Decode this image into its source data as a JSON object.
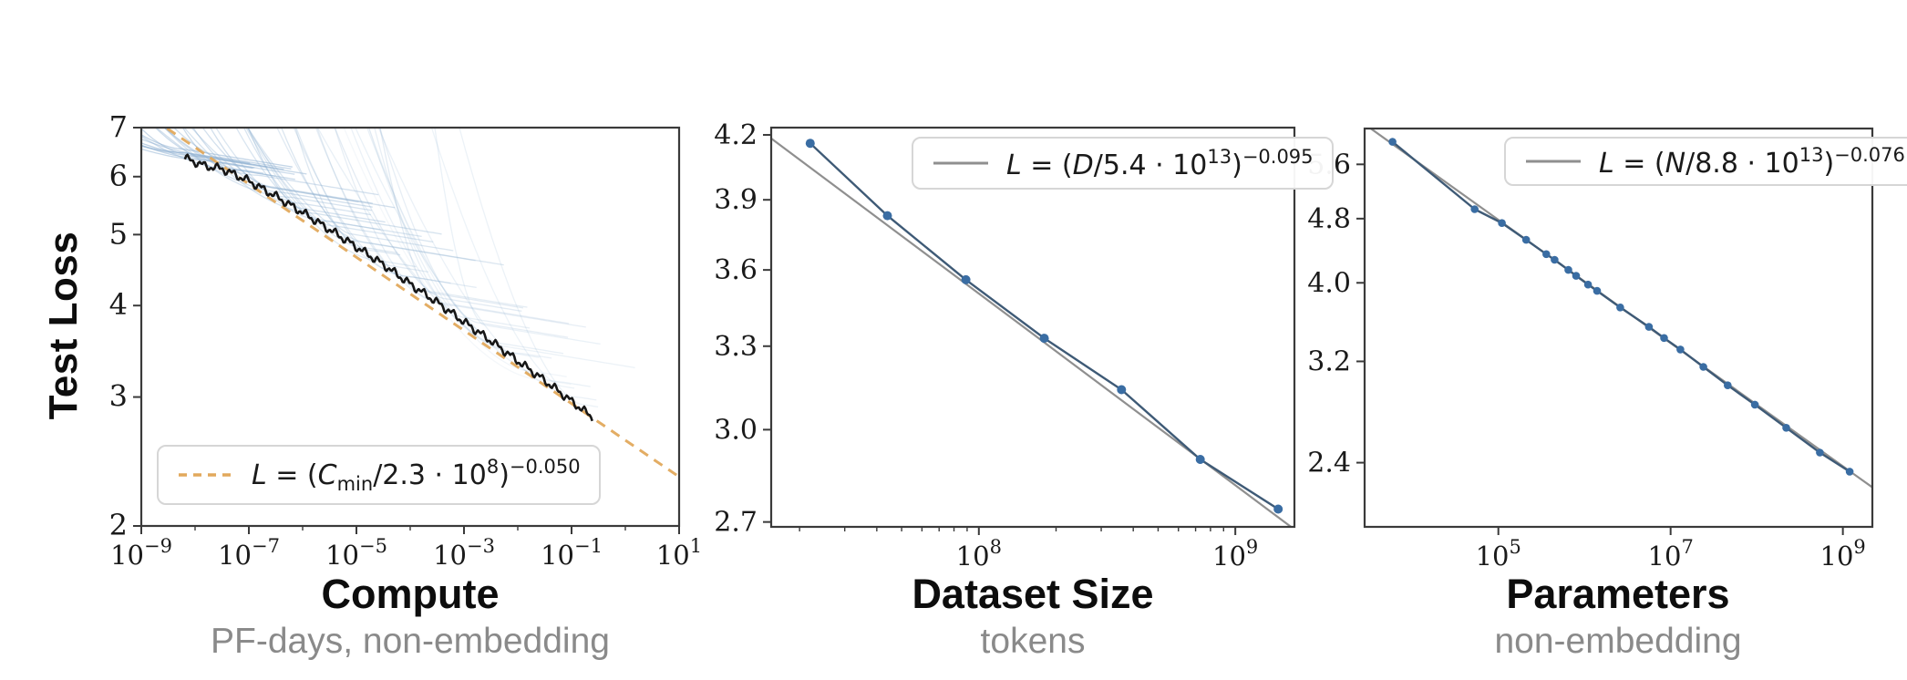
{
  "figure": {
    "y_axis_label": "Test Loss",
    "background": "#ffffff",
    "colors": {
      "axis": "#3a3a3a",
      "tick_label": "#1a1a1a",
      "title": "#0d0d0d",
      "subtitle": "#8a8a8a",
      "curve_blue": "#91b2d2",
      "envelope_black": "#161616",
      "fit_orange": "#e2a95c",
      "fit_gray": "#8f8f8f",
      "data_line": "#3e5a76",
      "marker_blue": "#3a6da3",
      "legend_border": "#d6d6d6"
    }
  },
  "chart_data": [
    {
      "id": "compute",
      "type": "line",
      "title": "Compute",
      "subtitle": "PF-days, non-embedding",
      "ylabel": "Test Loss",
      "xscale": "log",
      "yscale": "log",
      "xlim": [
        1e-09,
        10
      ],
      "ylim": [
        2,
        7
      ],
      "xticks": {
        "major_exps": [
          -9,
          -7,
          -5,
          -3,
          -1,
          1
        ],
        "minor_exps": [
          -8,
          -6,
          -4,
          -2,
          0
        ]
      },
      "yticks": [
        {
          "v": 7,
          "label": "7"
        },
        {
          "v": 6,
          "label": "6"
        },
        {
          "v": 5,
          "label": "5"
        },
        {
          "v": 4,
          "label": "4"
        },
        {
          "v": 3,
          "label": "3"
        },
        {
          "v": 2,
          "label": "2"
        }
      ],
      "fit": {
        "formula_text": "L = (C_min/2.3·10^8)^-0.050",
        "formula_segments": [
          {
            "t": "L",
            "i": true
          },
          {
            "t": " = ("
          },
          {
            "t": "C",
            "i": true
          },
          {
            "t": "min",
            "s": "sub"
          },
          {
            "t": "/2.3 · 10"
          },
          {
            "t": "8",
            "s": "sup"
          },
          {
            "t": ")"
          },
          {
            "t": "−0.050",
            "s": "sup"
          }
        ],
        "scale": 230000000.0,
        "exponent": -0.05,
        "line_style": "dashed",
        "color_key": "fit_orange",
        "legend_position": "bottom-left"
      },
      "envelope_points": [
        [
          -8.19,
          6.36
        ],
        [
          -7.8,
          6.2
        ],
        [
          -7.5,
          6.15
        ],
        [
          -7.0,
          5.92
        ],
        [
          -6.5,
          5.64
        ],
        [
          -6.0,
          5.36
        ],
        [
          -5.5,
          5.08
        ],
        [
          -5.0,
          4.81
        ],
        [
          -4.5,
          4.55
        ],
        [
          -4.0,
          4.28
        ],
        [
          -3.5,
          4.04
        ],
        [
          -3.0,
          3.8
        ],
        [
          -2.5,
          3.58
        ],
        [
          -2.0,
          3.36
        ],
        [
          -1.5,
          3.16
        ],
        [
          -1.0,
          2.96
        ],
        [
          -0.6,
          2.81
        ]
      ],
      "training_curves": {
        "count": 52,
        "touch_exp_range": [
          -8.25,
          -0.75
        ],
        "seed": 11
      }
    },
    {
      "id": "dataset",
      "type": "line",
      "title": "Dataset Size",
      "subtitle": "tokens",
      "xscale": "log",
      "yscale": "log",
      "xlim": [
        15500000.0,
        1700000000.0
      ],
      "ylim": [
        2.685,
        4.235
      ],
      "xticks": {
        "major_exps": [
          8,
          9
        ],
        "log_minors": true
      },
      "yticks": [
        {
          "v": 4.2,
          "label": "4.2"
        },
        {
          "v": 3.9,
          "label": "3.9"
        },
        {
          "v": 3.6,
          "label": "3.6"
        },
        {
          "v": 3.3,
          "label": "3.3"
        },
        {
          "v": 3.0,
          "label": "3.0"
        },
        {
          "v": 2.7,
          "label": "2.7"
        }
      ],
      "fit": {
        "formula_text": "L = (D/5.4·10^13)^-0.095",
        "formula_segments": [
          {
            "t": "L",
            "i": true
          },
          {
            "t": " = ("
          },
          {
            "t": "D",
            "i": true
          },
          {
            "t": "/5.4 · 10"
          },
          {
            "t": "13",
            "s": "sup"
          },
          {
            "t": ")"
          },
          {
            "t": "−0.095",
            "s": "sup"
          }
        ],
        "scale": 54000000000000.0,
        "exponent": -0.095,
        "line_style": "solid",
        "color_key": "fit_gray",
        "legend_position": "top-right"
      },
      "points": {
        "x": [
          22000000.0,
          44000000.0,
          89000000.0,
          180000000.0,
          360000000.0,
          730000000.0,
          1470000000.0
        ],
        "y": [
          4.16,
          3.83,
          3.56,
          3.33,
          3.14,
          2.9,
          2.74
        ]
      }
    },
    {
      "id": "parameters",
      "type": "line",
      "title": "Parameters",
      "subtitle": "non-embedding",
      "xscale": "log",
      "yscale": "log",
      "xlim": [
        2800.0,
        2200000000.0
      ],
      "ylim": [
        2.0,
        6.2
      ],
      "xticks": {
        "major_exps": [
          5,
          7,
          9
        ]
      },
      "yticks": [
        {
          "v": 5.6,
          "label": "5.6"
        },
        {
          "v": 4.8,
          "label": "4.8"
        },
        {
          "v": 4.0,
          "label": "4.0"
        },
        {
          "v": 3.2,
          "label": "3.2"
        },
        {
          "v": 2.4,
          "label": "2.4"
        }
      ],
      "fit": {
        "formula_text": "L = (N/8.8·10^13)^-0.076",
        "formula_segments": [
          {
            "t": "L",
            "i": true
          },
          {
            "t": " = ("
          },
          {
            "t": "N",
            "i": true
          },
          {
            "t": "/8.8 · 10"
          },
          {
            "t": "13",
            "s": "sup"
          },
          {
            "t": ")"
          },
          {
            "t": "−0.076",
            "s": "sup"
          }
        ],
        "scale": 88000000000000.0,
        "exponent": -0.076,
        "line_style": "solid",
        "color_key": "fit_gray",
        "legend_position": "top-right"
      },
      "points": {
        "x": [
          5900.0,
          53000.0,
          110000.0,
          210000.0,
          360000.0,
          450000.0,
          650000.0,
          800000.0,
          1100000.0,
          1400000.0,
          2600000.0,
          5600000.0,
          8400000.0,
          13000000.0,
          24000000.0,
          46000000.0,
          95000000.0,
          220000000.0,
          540000000.0,
          1200000000.0
        ],
        "y": [
          5.97,
          4.93,
          4.74,
          4.52,
          4.34,
          4.27,
          4.15,
          4.08,
          3.98,
          3.91,
          3.73,
          3.53,
          3.42,
          3.31,
          3.15,
          2.99,
          2.83,
          2.65,
          2.47,
          2.34
        ]
      }
    }
  ]
}
